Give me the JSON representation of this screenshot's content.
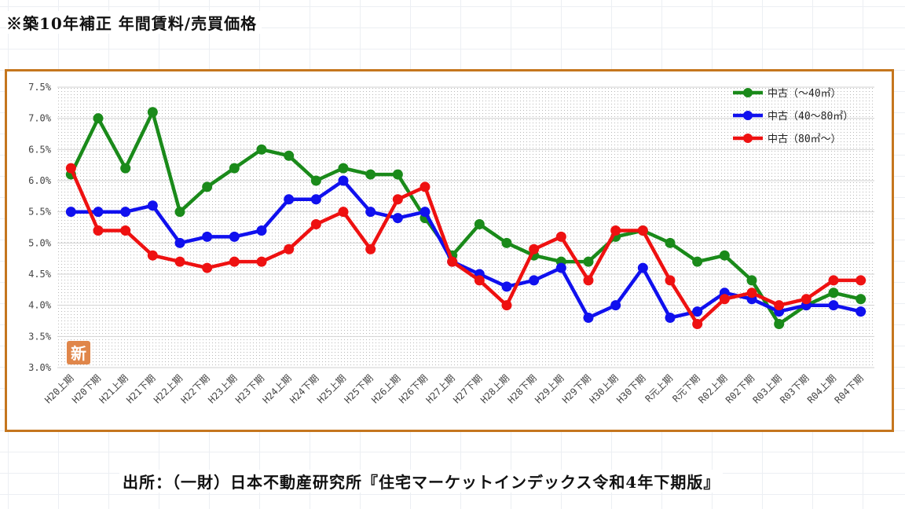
{
  "title": "※築10年補正 年間賃料/売買価格",
  "source": "出所：（一財）日本不動産研究所『住宅マーケットインデックス令和4年下期版』",
  "stamp": "新",
  "chart_data": {
    "type": "line",
    "categories": [
      "H20上期",
      "H20下期",
      "H21上期",
      "H21下期",
      "H22上期",
      "H22下期",
      "H23上期",
      "H23下期",
      "H24上期",
      "H24下期",
      "H25上期",
      "H25下期",
      "H26上期",
      "H26下期",
      "H27上期",
      "H27下期",
      "H28上期",
      "H28下期",
      "H29上期",
      "H29下期",
      "H30上期",
      "H30下期",
      "R元上期",
      "R元下期",
      "R02上期",
      "R02下期",
      "R03上期",
      "R03下期",
      "R04上期",
      "R04下期"
    ],
    "ylim": [
      3.0,
      7.5
    ],
    "yticks": [
      "3.0%",
      "3.5%",
      "4.0%",
      "4.5%",
      "5.0%",
      "5.5%",
      "6.0%",
      "6.5%",
      "7.0%",
      "7.5%"
    ],
    "ytick_values": [
      3.0,
      3.5,
      4.0,
      4.5,
      5.0,
      5.5,
      6.0,
      6.5,
      7.0,
      7.5
    ],
    "grid": true,
    "legend_position": "top-right",
    "series": [
      {
        "name": "中古（～40㎡）",
        "color": "#1a8a1a",
        "values": [
          6.1,
          7.0,
          6.2,
          7.1,
          5.5,
          5.9,
          6.2,
          6.5,
          6.4,
          6.0,
          6.2,
          6.1,
          6.1,
          5.4,
          4.8,
          5.3,
          5.0,
          4.8,
          4.7,
          4.7,
          5.1,
          5.2,
          5.0,
          4.7,
          4.8,
          4.4,
          3.7,
          4.0,
          4.2,
          4.1
        ]
      },
      {
        "name": "中古（40～80㎡）",
        "color": "#1010ee",
        "values": [
          5.5,
          5.5,
          5.5,
          5.6,
          5.0,
          5.1,
          5.1,
          5.2,
          5.7,
          5.7,
          6.0,
          5.5,
          5.4,
          5.5,
          4.7,
          4.5,
          4.3,
          4.4,
          4.6,
          3.8,
          4.0,
          4.6,
          3.8,
          3.9,
          4.2,
          4.1,
          3.9,
          4.0,
          4.0,
          3.9
        ]
      },
      {
        "name": "中古（80㎡～）",
        "color": "#ee1111",
        "values": [
          6.2,
          5.2,
          5.2,
          4.8,
          4.7,
          4.6,
          4.7,
          4.7,
          4.9,
          5.3,
          5.5,
          4.9,
          5.7,
          5.9,
          4.7,
          4.4,
          4.0,
          4.9,
          5.1,
          4.4,
          5.2,
          5.2,
          4.4,
          3.7,
          4.1,
          4.2,
          4.0,
          4.1,
          4.4,
          4.4
        ]
      }
    ]
  }
}
